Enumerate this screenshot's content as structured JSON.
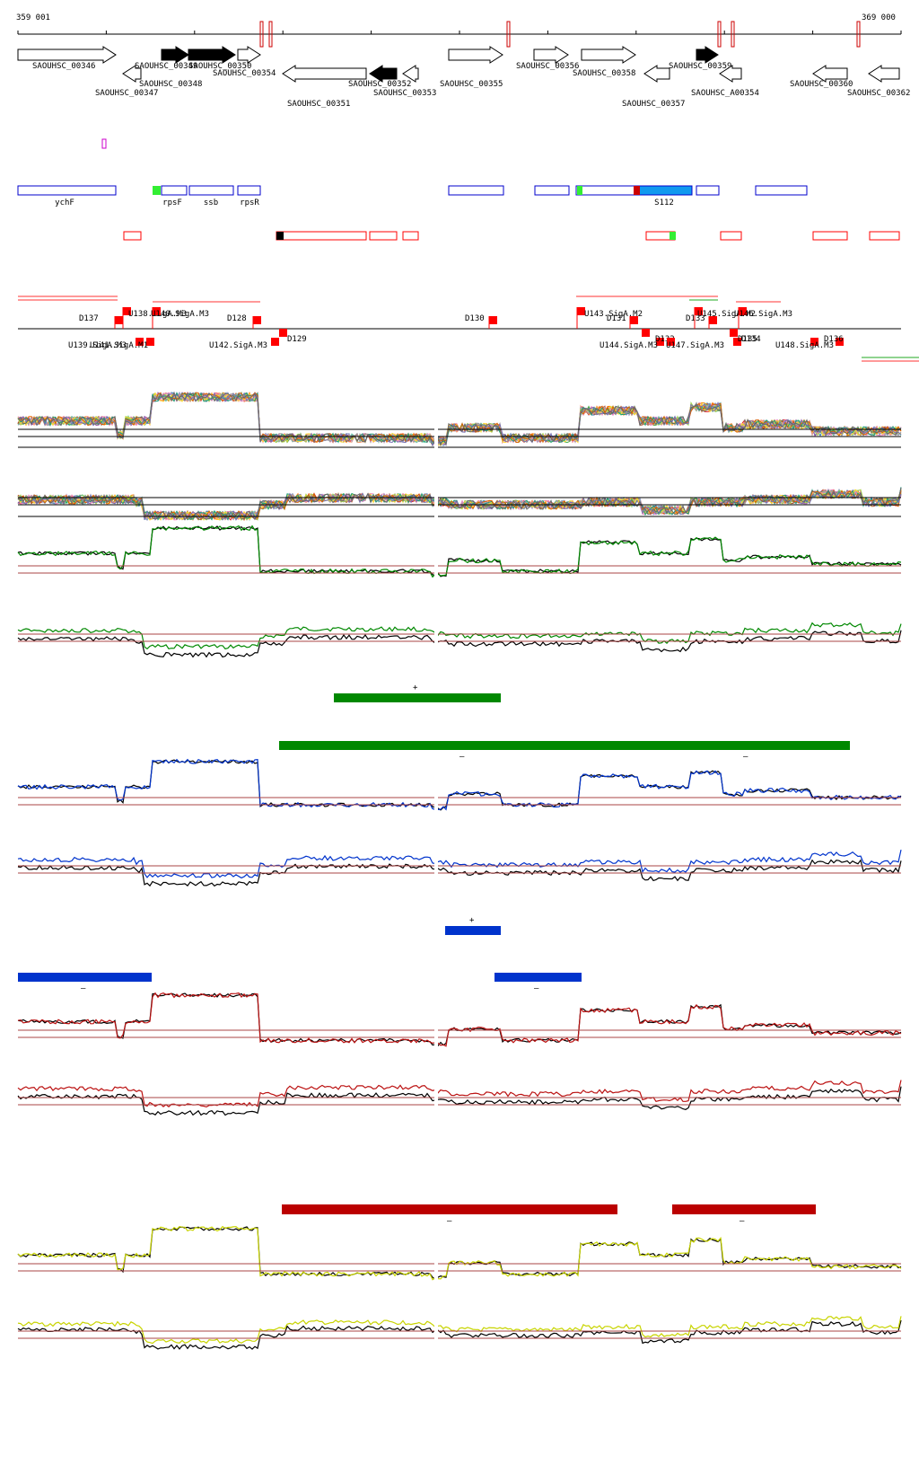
{
  "coords": {
    "start": "359 001",
    "end": "369 000"
  },
  "colors": {
    "gene_outline": "#000000",
    "gene_fill_black": "#000000",
    "blue_box": "#0000cc",
    "red_box": "#ff0000",
    "green": "#008800",
    "blue": "#0033cc",
    "red": "#bb1111",
    "yellow": "#c8d400",
    "profile_black": "#000000",
    "baseline": "#aa4444"
  },
  "genes": {
    "top": [
      {
        "label": "SAOUHSC_00346",
        "strand": "+",
        "filled": false
      },
      {
        "label": "SAOUHSC_00349",
        "strand": "+",
        "filled": true
      },
      {
        "label": "SAOUHSC_00350",
        "strand": "+",
        "filled": true
      },
      {
        "label": "SAOUHSC_00354",
        "strand": "+",
        "filled": false
      },
      {
        "label": "SAOUHSC_00355",
        "strand": "+",
        "filled": false
      },
      {
        "label": "SAOUHSC_00356",
        "strand": "+",
        "filled": false
      },
      {
        "label": "SAOUHSC_00358",
        "strand": "+",
        "filled": false
      },
      {
        "label": "SAOUHSC_00359",
        "strand": "+",
        "filled": true
      }
    ],
    "bottom": [
      {
        "label": "SAOUHSC_00347",
        "strand": "-",
        "filled": false
      },
      {
        "label": "SAOUHSC_00348",
        "strand": "+",
        "filled": true
      },
      {
        "label": "SAOUHSC_00351",
        "strand": "-",
        "filled": false
      },
      {
        "label": "SAOUHSC_00352",
        "strand": "-",
        "filled": true
      },
      {
        "label": "SAOUHSC_00353",
        "strand": "-",
        "filled": false
      },
      {
        "label": "SAOUHSC_00357",
        "strand": "-",
        "filled": false
      },
      {
        "label": "SAOUHSC_A00354",
        "strand": "-",
        "filled": false
      },
      {
        "label": "SAOUHSC_00360",
        "strand": "-",
        "filled": false
      },
      {
        "label": "SAOUHSC_00362",
        "strand": "-",
        "filled": false
      }
    ]
  },
  "annotations": {
    "blue_boxes": [
      {
        "label": "ychF"
      },
      {
        "label": "rpsF"
      },
      {
        "label": "ssb"
      },
      {
        "label": "rpsR"
      },
      {
        "label": ""
      },
      {
        "label": ""
      },
      {
        "label": ""
      },
      {
        "label": "S112"
      },
      {
        "label": ""
      },
      {
        "label": ""
      }
    ]
  },
  "features": {
    "upper_labels": [
      "D137",
      "U138.SigA.M3",
      "U140.SigA.M3",
      "D128",
      "D130",
      "U143.SigA.M2",
      "D131",
      "D133",
      "U145.SigA.M2",
      "U146.SigA.M3"
    ],
    "lower_labels": [
      "U139.SigA.M3",
      "U141.SigA.M1",
      "U142.SigA.M3",
      "D129",
      "U144.SigA.M3",
      "D132",
      "U147.SigA.M3",
      "D134",
      "D135",
      "U148.SigA.M3",
      "D136"
    ]
  },
  "segments": {
    "green_plus": "+",
    "green_minus": "–",
    "green_minus_2": "–",
    "blue_plus": "+",
    "blue_minus": "–",
    "blue_minus_2": "–",
    "red_minus": "–",
    "red_minus_2": "–"
  }
}
